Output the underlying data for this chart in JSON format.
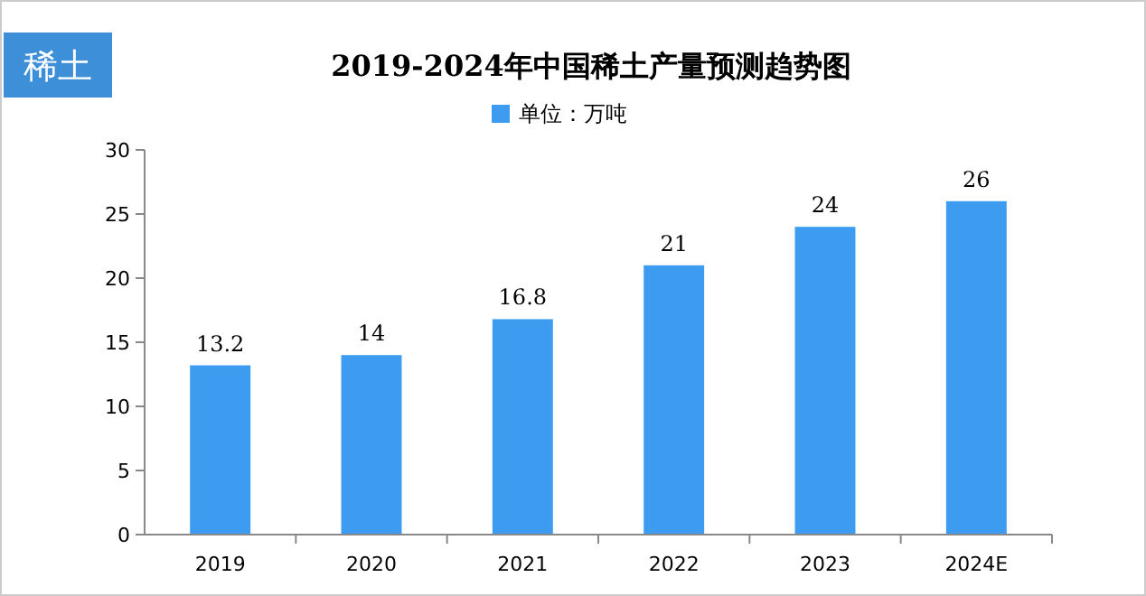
{
  "chart_data": {
    "type": "bar",
    "title": "2019-2024年中国稀土产量预测趋势图",
    "annotations": [
      "稀土"
    ],
    "categories": [
      "2019",
      "2020",
      "2021",
      "2022",
      "2023",
      "2024E"
    ],
    "series": [
      {
        "name": "单位：万吨",
        "color": "#3d9cf0",
        "values": [
          13.2,
          14,
          16.8,
          21,
          24,
          26
        ]
      }
    ],
    "ylim": [
      0,
      30
    ],
    "yticks": [
      0,
      5,
      10,
      15,
      20,
      25,
      30
    ],
    "data_labels": true,
    "legend": "top",
    "grid": false
  }
}
